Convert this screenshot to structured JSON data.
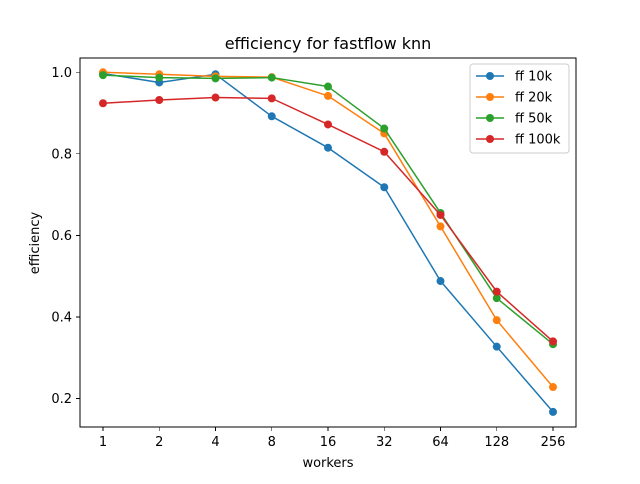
{
  "chart_data": {
    "type": "line",
    "title": "efficiency for fastflow knn",
    "xlabel": "workers",
    "ylabel": "efficiency",
    "categories": [
      "1",
      "2",
      "4",
      "8",
      "16",
      "32",
      "64",
      "128",
      "256"
    ],
    "ylim": [
      0.13,
      1.035
    ],
    "yticks": [
      0.2,
      0.4,
      0.6,
      0.8,
      1.0
    ],
    "ytick_labels": [
      "0.2",
      "0.4",
      "0.6",
      "0.8",
      "1.0"
    ],
    "grid": false,
    "legend_position": "top-right",
    "marker": "circle",
    "series": [
      {
        "name": "ff 10k",
        "color": "#1f77b4",
        "values": [
          0.997,
          0.975,
          0.995,
          0.892,
          0.815,
          0.718,
          0.488,
          0.327,
          0.167
        ]
      },
      {
        "name": "ff 20k",
        "color": "#ff7f0e",
        "values": [
          1.0,
          0.995,
          0.99,
          0.988,
          0.942,
          0.85,
          0.622,
          0.392,
          0.228
        ]
      },
      {
        "name": "ff 50k",
        "color": "#2ca02c",
        "values": [
          0.993,
          0.987,
          0.985,
          0.987,
          0.965,
          0.862,
          0.655,
          0.446,
          0.333
        ]
      },
      {
        "name": "ff 100k",
        "color": "#d62728",
        "values": [
          0.924,
          0.932,
          0.938,
          0.936,
          0.872,
          0.805,
          0.65,
          0.462,
          0.34
        ]
      }
    ]
  }
}
